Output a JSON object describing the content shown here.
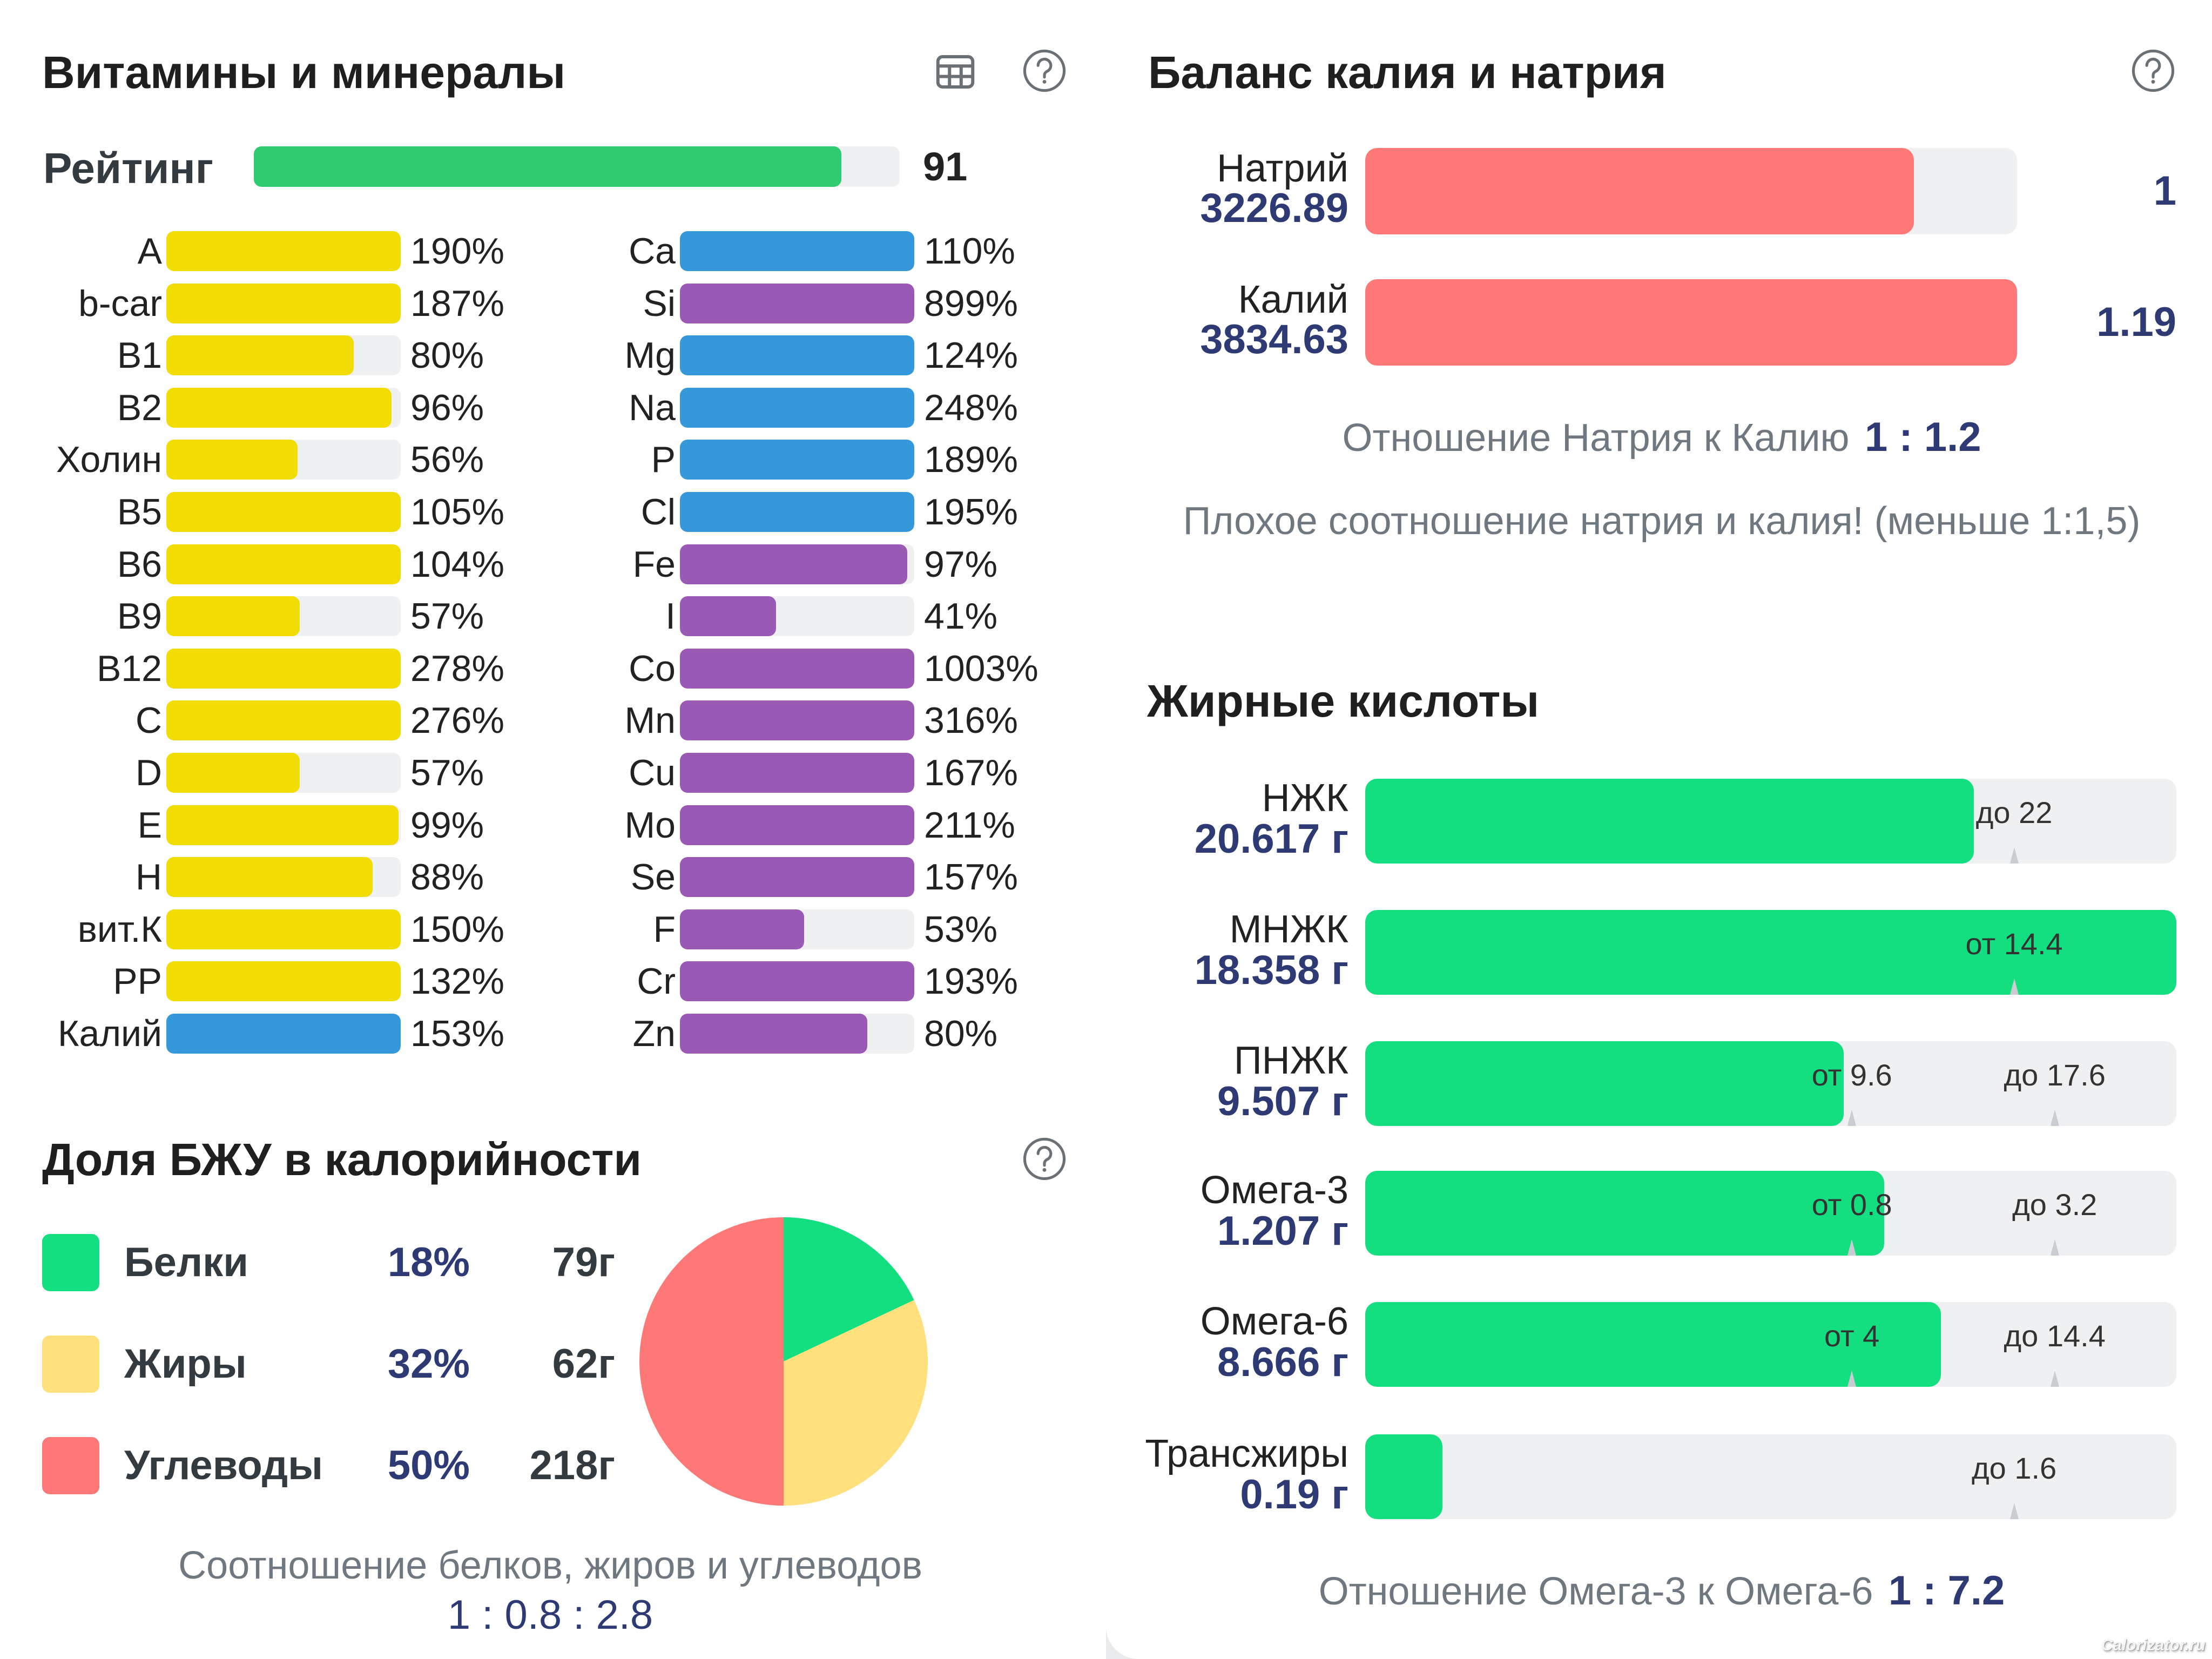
{
  "colors": {
    "rating": "#2ecc71",
    "vitamin": "#f2dd02",
    "macro_mineral": "#3498db",
    "micro_mineral": "#9b59b6",
    "track": "#eff0f2",
    "sodium_potassium": "#ff7878",
    "fatty_acid": "#14df80",
    "protein": "#14df80",
    "fat": "#ffe07d",
    "carbs": "#ff7878",
    "accent_text": "#2d3a73"
  },
  "vitamins_section": {
    "title": "Витамины и минералы",
    "table_icon": "table-grid-icon",
    "help_icon": "question-circle-icon",
    "rating": {
      "label": "Рейтинг",
      "value": "91",
      "percent": 91
    },
    "left_column": [
      {
        "name": "A",
        "percent_text": "190%",
        "percent": 190,
        "color": "vitamin"
      },
      {
        "name": "b-car",
        "percent_text": "187%",
        "percent": 187,
        "color": "vitamin"
      },
      {
        "name": "B1",
        "percent_text": "80%",
        "percent": 80,
        "color": "vitamin"
      },
      {
        "name": "B2",
        "percent_text": "96%",
        "percent": 96,
        "color": "vitamin"
      },
      {
        "name": "Холин",
        "percent_text": "56%",
        "percent": 56,
        "color": "vitamin"
      },
      {
        "name": "B5",
        "percent_text": "105%",
        "percent": 105,
        "color": "vitamin"
      },
      {
        "name": "B6",
        "percent_text": "104%",
        "percent": 104,
        "color": "vitamin"
      },
      {
        "name": "B9",
        "percent_text": "57%",
        "percent": 57,
        "color": "vitamin"
      },
      {
        "name": "B12",
        "percent_text": "278%",
        "percent": 278,
        "color": "vitamin"
      },
      {
        "name": "C",
        "percent_text": "276%",
        "percent": 276,
        "color": "vitamin"
      },
      {
        "name": "D",
        "percent_text": "57%",
        "percent": 57,
        "color": "vitamin"
      },
      {
        "name": "E",
        "percent_text": "99%",
        "percent": 99,
        "color": "vitamin"
      },
      {
        "name": "H",
        "percent_text": "88%",
        "percent": 88,
        "color": "vitamin"
      },
      {
        "name": "вит.К",
        "percent_text": "150%",
        "percent": 150,
        "color": "vitamin"
      },
      {
        "name": "PP",
        "percent_text": "132%",
        "percent": 132,
        "color": "vitamin"
      },
      {
        "name": "Калий",
        "percent_text": "153%",
        "percent": 153,
        "color": "macro_mineral"
      }
    ],
    "right_column": [
      {
        "name": "Ca",
        "percent_text": "110%",
        "percent": 110,
        "color": "macro_mineral"
      },
      {
        "name": "Si",
        "percent_text": "899%",
        "percent": 899,
        "color": "micro_mineral"
      },
      {
        "name": "Mg",
        "percent_text": "124%",
        "percent": 124,
        "color": "macro_mineral"
      },
      {
        "name": "Na",
        "percent_text": "248%",
        "percent": 248,
        "color": "macro_mineral"
      },
      {
        "name": "P",
        "percent_text": "189%",
        "percent": 189,
        "color": "macro_mineral"
      },
      {
        "name": "Cl",
        "percent_text": "195%",
        "percent": 195,
        "color": "macro_mineral"
      },
      {
        "name": "Fe",
        "percent_text": "97%",
        "percent": 97,
        "color": "micro_mineral"
      },
      {
        "name": "I",
        "percent_text": "41%",
        "percent": 41,
        "color": "micro_mineral"
      },
      {
        "name": "Co",
        "percent_text": "1003%",
        "percent": 1003,
        "color": "micro_mineral"
      },
      {
        "name": "Mn",
        "percent_text": "316%",
        "percent": 316,
        "color": "micro_mineral"
      },
      {
        "name": "Cu",
        "percent_text": "167%",
        "percent": 167,
        "color": "micro_mineral"
      },
      {
        "name": "Mo",
        "percent_text": "211%",
        "percent": 211,
        "color": "micro_mineral"
      },
      {
        "name": "Se",
        "percent_text": "157%",
        "percent": 157,
        "color": "micro_mineral"
      },
      {
        "name": "F",
        "percent_text": "53%",
        "percent": 53,
        "color": "micro_mineral"
      },
      {
        "name": "Cr",
        "percent_text": "193%",
        "percent": 193,
        "color": "micro_mineral"
      },
      {
        "name": "Zn",
        "percent_text": "80%",
        "percent": 80,
        "color": "micro_mineral"
      }
    ]
  },
  "macros_section": {
    "title": "Доля БЖУ в калорийности",
    "help_icon": "question-circle-icon",
    "items": [
      {
        "name": "Белки",
        "percent_text": "18%",
        "grams": "79г",
        "color": "protein"
      },
      {
        "name": "Жиры",
        "percent_text": "32%",
        "grams": "62г",
        "color": "fat"
      },
      {
        "name": "Углеводы",
        "percent_text": "50%",
        "grams": "218г",
        "color": "carbs"
      }
    ],
    "ratio_label": "Соотношение белков, жиров и углеводов",
    "ratio_value": "1 : 0.8 : 2.8"
  },
  "chart_data": {
    "type": "pie",
    "title": "Доля БЖУ в калорийности",
    "categories": [
      "Белки",
      "Жиры",
      "Углеводы"
    ],
    "values": [
      18,
      32,
      50
    ],
    "grams": [
      79,
      62,
      218
    ],
    "start": "top",
    "direction": "clockwise",
    "legend": "left"
  },
  "sodium_potassium_section": {
    "title": "Баланс калия и натрия",
    "help_icon": "question-circle-icon",
    "rows": [
      {
        "name": "Натрий",
        "value": "3226.89",
        "amount": 3226.89,
        "ratio": "1"
      },
      {
        "name": "Калий",
        "value": "3834.63",
        "amount": 3834.63,
        "ratio": "1.19"
      }
    ],
    "ratio_label": "Отношение Натрия к Калию",
    "ratio_value": "1 : 1.2",
    "warning": "Плохое соотношение натрия и калия! (меньше 1:1,5)"
  },
  "fatty_acids_section": {
    "title": "Жирные кислоты",
    "rows": [
      {
        "name": "НЖК",
        "value": "20.617 г",
        "fill_percent": 75,
        "markers": [
          {
            "label": "до 22",
            "position_percent": 80
          }
        ]
      },
      {
        "name": "МНЖК",
        "value": "18.358 г",
        "fill_percent": 100,
        "markers": [
          {
            "label": "от 14.4",
            "position_percent": 80
          }
        ]
      },
      {
        "name": "ПНЖК",
        "value": "9.507 г",
        "fill_percent": 59,
        "markers": [
          {
            "label": "от 9.6",
            "position_percent": 60
          },
          {
            "label": "до 17.6",
            "position_percent": 85
          }
        ]
      },
      {
        "name": "Омега-3",
        "value": "1.207 г",
        "fill_percent": 64,
        "markers": [
          {
            "label": "от 0.8",
            "position_percent": 60
          },
          {
            "label": "до 3.2",
            "position_percent": 85
          }
        ]
      },
      {
        "name": "Омега-6",
        "value": "8.666 г",
        "fill_percent": 71,
        "markers": [
          {
            "label": "от 4",
            "position_percent": 60
          },
          {
            "label": "до 14.4",
            "position_percent": 85
          }
        ]
      },
      {
        "name": "Трансжиры",
        "value": "0.19 г",
        "fill_percent": 9.5,
        "markers": [
          {
            "label": "до 1.6",
            "position_percent": 80
          }
        ]
      }
    ],
    "ratio_label": "Отношение Омега-3 к Омега-6",
    "ratio_value": "1 : 7.2"
  },
  "watermark": "Calorizator.ru"
}
